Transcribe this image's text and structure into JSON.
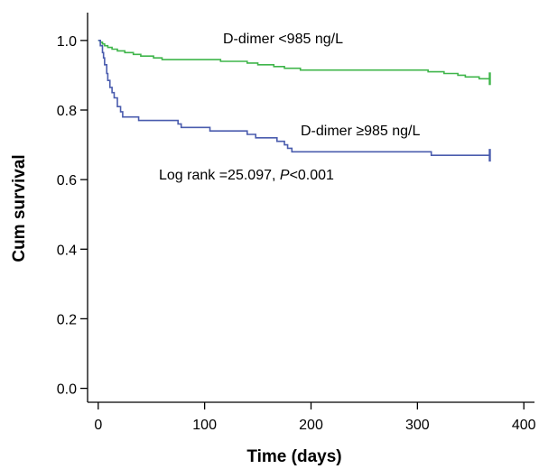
{
  "chart_data": {
    "type": "line",
    "title": "",
    "xlabel": "Time (days)",
    "ylabel": "Cum survival",
    "xlim": [
      -10,
      410
    ],
    "ylim": [
      -0.04,
      1.08
    ],
    "xticks": [
      0,
      100,
      200,
      300,
      400
    ],
    "xtick_labels": [
      "0",
      "100",
      "200",
      "300",
      "400"
    ],
    "yticks": [
      0.0,
      0.2,
      0.4,
      0.6,
      0.8,
      1.0
    ],
    "ytick_labels": [
      "0.0",
      "0.2",
      "0.4",
      "0.6",
      "0.8",
      "1.0"
    ],
    "grid": false,
    "series": [
      {
        "name": "D-dimer <985 ng/L",
        "color": "#3fb54a",
        "censor_x": 368,
        "points": [
          [
            0,
            1.0
          ],
          [
            2,
            0.995
          ],
          [
            4,
            0.99
          ],
          [
            6,
            0.985
          ],
          [
            9,
            0.98
          ],
          [
            13,
            0.975
          ],
          [
            18,
            0.97
          ],
          [
            25,
            0.965
          ],
          [
            33,
            0.96
          ],
          [
            40,
            0.955
          ],
          [
            52,
            0.95
          ],
          [
            60,
            0.945
          ],
          [
            115,
            0.94
          ],
          [
            140,
            0.935
          ],
          [
            150,
            0.93
          ],
          [
            165,
            0.925
          ],
          [
            175,
            0.92
          ],
          [
            190,
            0.915
          ],
          [
            310,
            0.91
          ],
          [
            325,
            0.905
          ],
          [
            338,
            0.9
          ],
          [
            345,
            0.895
          ],
          [
            358,
            0.89
          ],
          [
            368,
            0.89
          ]
        ]
      },
      {
        "name": "D-dimer ≥985 ng/L",
        "color": "#4a5cae",
        "censor_x": 368,
        "points": [
          [
            0,
            1.0
          ],
          [
            2,
            0.985
          ],
          [
            4,
            0.965
          ],
          [
            5,
            0.95
          ],
          [
            6,
            0.93
          ],
          [
            8,
            0.905
          ],
          [
            9,
            0.885
          ],
          [
            11,
            0.865
          ],
          [
            13,
            0.85
          ],
          [
            15,
            0.835
          ],
          [
            18,
            0.81
          ],
          [
            21,
            0.795
          ],
          [
            23,
            0.78
          ],
          [
            38,
            0.77
          ],
          [
            75,
            0.76
          ],
          [
            78,
            0.75
          ],
          [
            105,
            0.74
          ],
          [
            140,
            0.73
          ],
          [
            148,
            0.72
          ],
          [
            168,
            0.71
          ],
          [
            175,
            0.7
          ],
          [
            178,
            0.69
          ],
          [
            182,
            0.68
          ],
          [
            313,
            0.67
          ],
          [
            368,
            0.67
          ]
        ]
      }
    ],
    "annotations": [
      {
        "text": "D-dimer <985 ng/L",
        "series_index": 0
      },
      {
        "text": "D-dimer ≥985 ng/L",
        "series_index": 1
      },
      {
        "text_before": "Log rank =25.097, ",
        "text_italic": "P",
        "text_after": "<0.001"
      }
    ]
  }
}
